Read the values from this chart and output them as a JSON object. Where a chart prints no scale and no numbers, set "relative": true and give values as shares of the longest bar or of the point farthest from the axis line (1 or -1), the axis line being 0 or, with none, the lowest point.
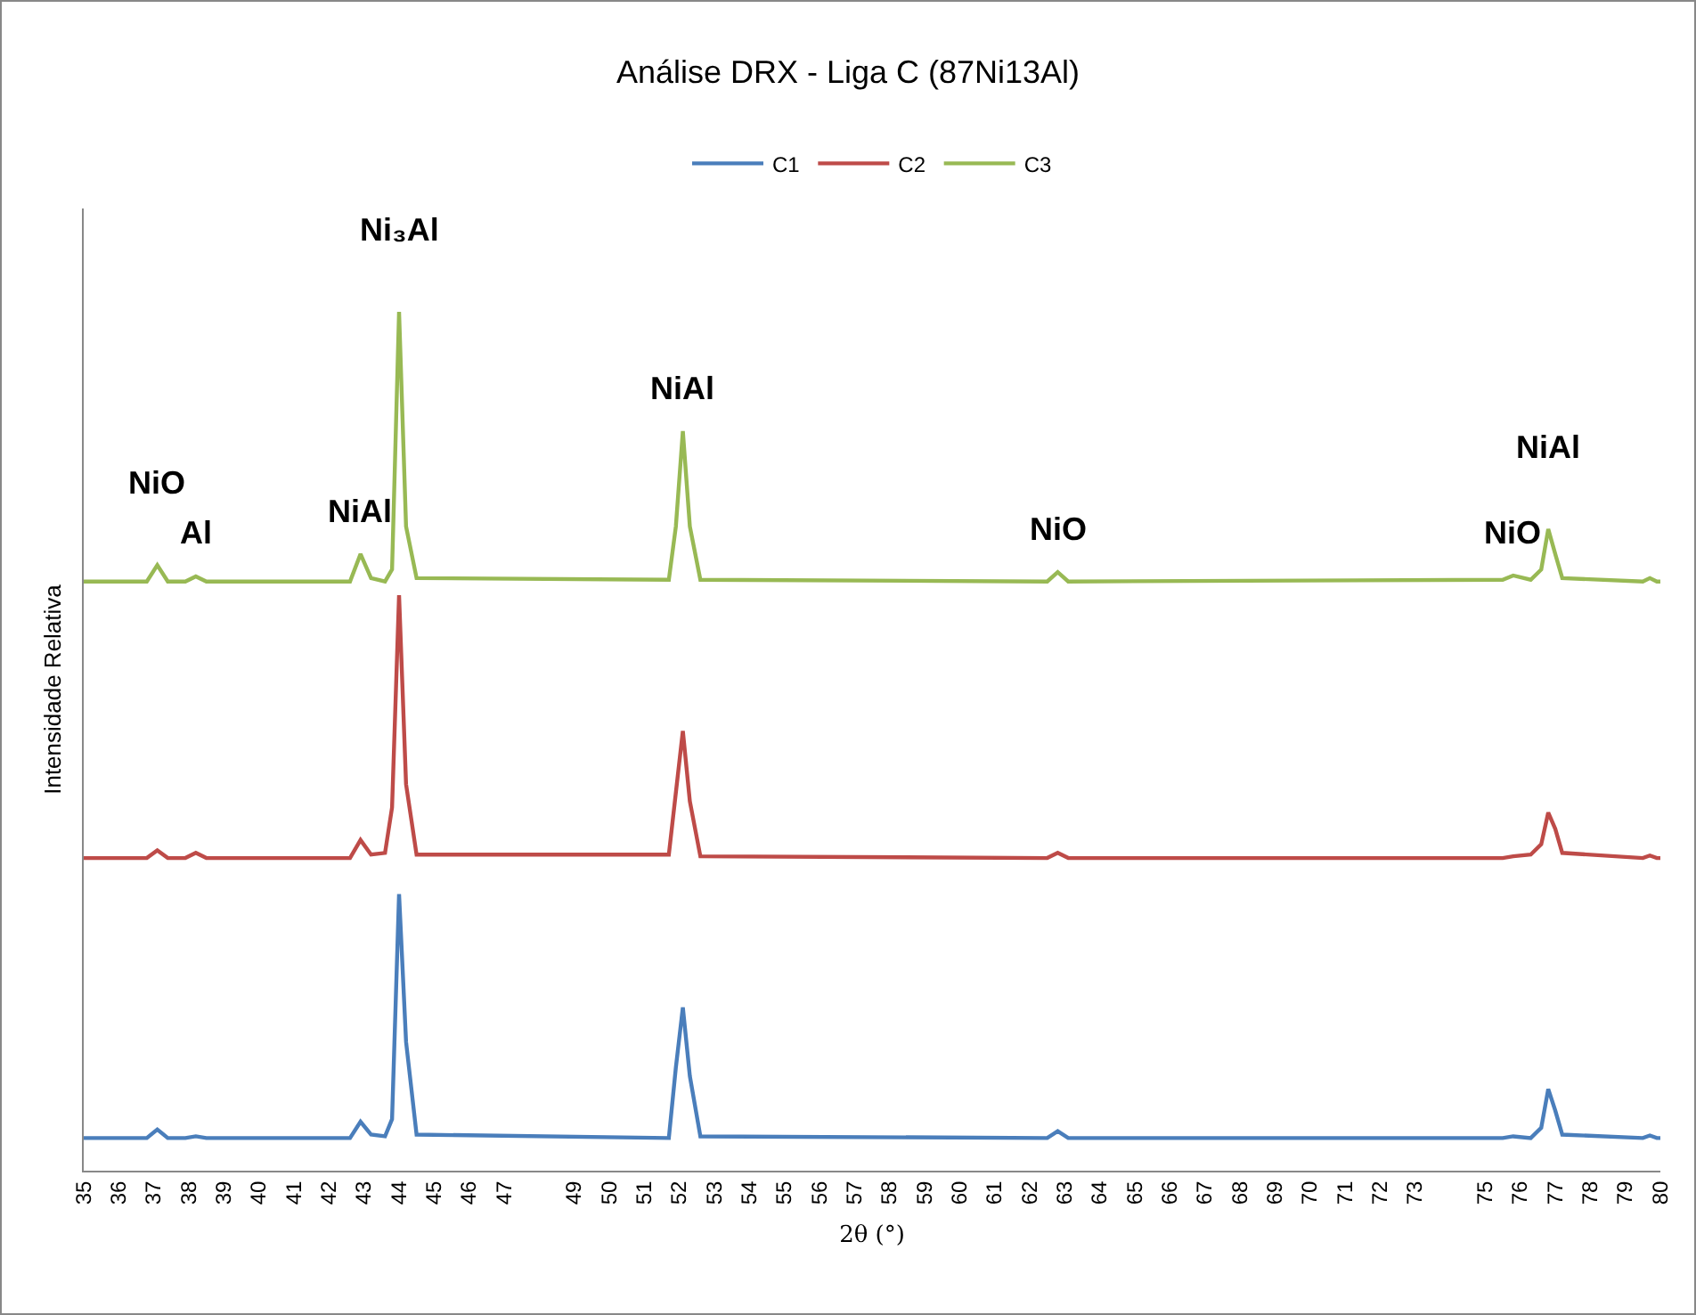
{
  "chart_data": {
    "type": "line",
    "title": "Análise DRX - Liga C (87Ni13Al)",
    "xlabel": "2θ (°)",
    "ylabel": "Intensidade Relativa",
    "relative": true,
    "grid": false,
    "legend": "top",
    "marker": "none",
    "line_style": "solid",
    "x": [
      35,
      36.8,
      37.1,
      37.4,
      37.9,
      38.2,
      38.5,
      42.6,
      42.9,
      43.2,
      43.6,
      43.8,
      44.0,
      44.2,
      44.5,
      51.7,
      51.9,
      52.1,
      52.3,
      52.6,
      62.5,
      62.8,
      63.1,
      75.5,
      75.8,
      76.3,
      76.6,
      76.8,
      77.0,
      77.2,
      79.5,
      79.7,
      79.9,
      80
    ],
    "xlim": [
      35,
      80
    ],
    "xticks": [
      35,
      36,
      37,
      38,
      39,
      40,
      41,
      42,
      43,
      44,
      45,
      46,
      47,
      49,
      50,
      51,
      52,
      53,
      54,
      55,
      56,
      57,
      58,
      59,
      60,
      61,
      62,
      63,
      64,
      65,
      66,
      67,
      68,
      69,
      70,
      71,
      72,
      73,
      75,
      76,
      77,
      78,
      79,
      80
    ],
    "series": [
      {
        "name": "C1",
        "color": "#4a7ebb",
        "values": [
          0.038,
          0.038,
          0.048,
          0.038,
          0.038,
          0.04,
          0.038,
          0.038,
          0.057,
          0.042,
          0.04,
          0.06,
          0.322,
          0.15,
          0.042,
          0.038,
          0.12,
          0.19,
          0.11,
          0.04,
          0.038,
          0.046,
          0.038,
          0.038,
          0.04,
          0.038,
          0.05,
          0.095,
          0.07,
          0.042,
          0.038,
          0.041,
          0.038,
          0.038
        ]
      },
      {
        "name": "C2",
        "color": "#be4b48",
        "values": [
          0.364,
          0.364,
          0.373,
          0.364,
          0.364,
          0.37,
          0.364,
          0.364,
          0.385,
          0.368,
          0.37,
          0.423,
          0.67,
          0.45,
          0.368,
          0.368,
          0.44,
          0.512,
          0.43,
          0.366,
          0.364,
          0.37,
          0.364,
          0.364,
          0.366,
          0.368,
          0.38,
          0.417,
          0.398,
          0.37,
          0.364,
          0.367,
          0.364,
          0.364
        ]
      },
      {
        "name": "C3",
        "color": "#98b954",
        "values": [
          0.686,
          0.686,
          0.705,
          0.686,
          0.686,
          0.692,
          0.686,
          0.686,
          0.718,
          0.69,
          0.686,
          0.7,
          1.0,
          0.75,
          0.69,
          0.688,
          0.75,
          0.861,
          0.75,
          0.688,
          0.686,
          0.697,
          0.686,
          0.688,
          0.693,
          0.688,
          0.7,
          0.747,
          0.718,
          0.69,
          0.686,
          0.69,
          0.686,
          0.686
        ]
      }
    ],
    "annotations": [
      {
        "text": "NiO",
        "x": 37.1,
        "y": 0.705
      },
      {
        "text": "Al",
        "x": 38.2,
        "y": 0.692
      },
      {
        "text": "NiAl",
        "x": 42.9,
        "y": 0.718
      },
      {
        "text": "Ni₃Al",
        "x": 44.0,
        "y": 1.0
      },
      {
        "text": "NiAl",
        "x": 52.1,
        "y": 0.861
      },
      {
        "text": "NiO",
        "x": 62.8,
        "y": 0.697
      },
      {
        "text": "NiO",
        "x": 75.8,
        "y": 0.693
      },
      {
        "text": "NiAl",
        "x": 76.8,
        "y": 0.747
      }
    ]
  }
}
